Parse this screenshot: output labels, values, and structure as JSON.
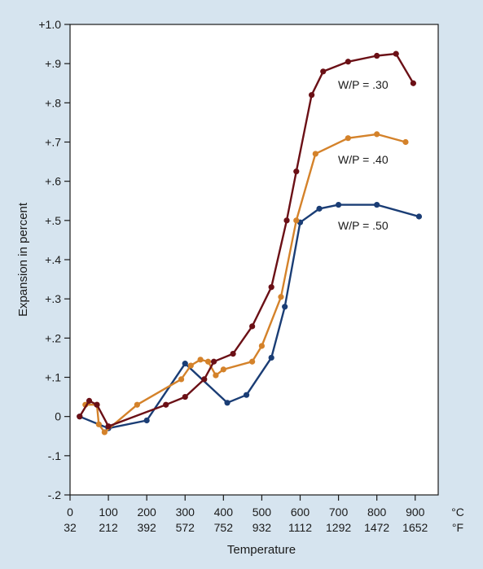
{
  "chart_data": {
    "type": "line",
    "xlabel": "Temperature",
    "ylabel": "Expansion in percent",
    "xlim": [
      0,
      960
    ],
    "ylim": [
      -0.2,
      1.0
    ],
    "grid": false,
    "y_ticks": [
      {
        "value": 1.0,
        "label": "+1.0"
      },
      {
        "value": 0.9,
        "label": "+.9"
      },
      {
        "value": 0.8,
        "label": "+.8"
      },
      {
        "value": 0.7,
        "label": "+.7"
      },
      {
        "value": 0.6,
        "label": "+.6"
      },
      {
        "value": 0.5,
        "label": "+.5"
      },
      {
        "value": 0.4,
        "label": "+.4"
      },
      {
        "value": 0.3,
        "label": "+.3"
      },
      {
        "value": 0.2,
        "label": "+.2"
      },
      {
        "value": 0.1,
        "label": "+.1"
      },
      {
        "value": 0.0,
        "label": "0"
      },
      {
        "value": -0.1,
        "label": "-.1"
      },
      {
        "value": -0.2,
        "label": "-.2"
      }
    ],
    "x_ticks": [
      {
        "value": 0,
        "c": "0",
        "f": "32"
      },
      {
        "value": 100,
        "c": "100",
        "f": "212"
      },
      {
        "value": 200,
        "c": "200",
        "f": "392"
      },
      {
        "value": 300,
        "c": "300",
        "f": "572"
      },
      {
        "value": 400,
        "c": "400",
        "f": "752"
      },
      {
        "value": 500,
        "c": "500",
        "f": "932"
      },
      {
        "value": 600,
        "c": "600",
        "f": "1112"
      },
      {
        "value": 700,
        "c": "700",
        "f": "1292"
      },
      {
        "value": 800,
        "c": "800",
        "f": "1472"
      },
      {
        "value": 900,
        "c": "900",
        "f": "1652"
      }
    ],
    "unit_c": "°C",
    "unit_f": "°F",
    "series": [
      {
        "name": "W/P = .30",
        "color": "#6b1016",
        "x": [
          25,
          50,
          70,
          100,
          250,
          300,
          350,
          375,
          425,
          475,
          525,
          565,
          590,
          630,
          660,
          725,
          800,
          850,
          895
        ],
        "y": [
          0.0,
          0.04,
          0.03,
          -0.025,
          0.03,
          0.05,
          0.095,
          0.14,
          0.16,
          0.23,
          0.33,
          0.5,
          0.625,
          0.82,
          0.88,
          0.905,
          0.92,
          0.925,
          0.85
        ]
      },
      {
        "name": "W/P = .40",
        "color": "#d4822a",
        "x": [
          40,
          70,
          75,
          90,
          175,
          290,
          315,
          340,
          360,
          380,
          400,
          475,
          500,
          550,
          590,
          640,
          725,
          800,
          875
        ],
        "y": [
          0.03,
          0.03,
          -0.02,
          -0.04,
          0.03,
          0.095,
          0.13,
          0.145,
          0.14,
          0.105,
          0.12,
          0.14,
          0.18,
          0.305,
          0.5,
          0.67,
          0.71,
          0.72,
          0.7
        ]
      },
      {
        "name": "W/P = .50",
        "color": "#1a3d75",
        "x": [
          25,
          100,
          200,
          300,
          410,
          460,
          525,
          560,
          600,
          650,
          700,
          800,
          910
        ],
        "y": [
          0.0,
          -0.03,
          -0.01,
          0.135,
          0.035,
          0.055,
          0.15,
          0.28,
          0.495,
          0.53,
          0.54,
          0.54,
          0.51
        ]
      }
    ]
  }
}
